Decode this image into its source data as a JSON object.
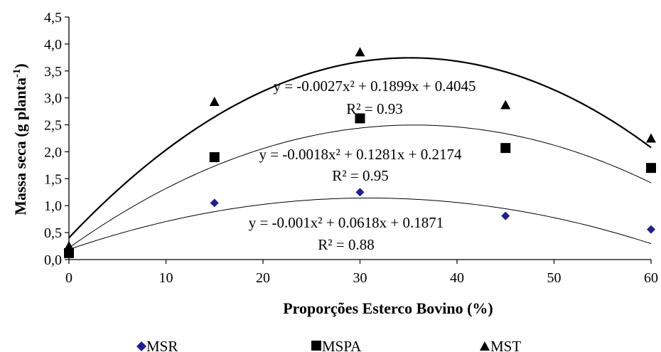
{
  "chart_data": {
    "type": "scatter",
    "xlabel": "Proporções Esterco Bovino (%)",
    "ylabel": "Massa seca (g planta",
    "ylabel_sup": "-1",
    "ylabel_close": ")",
    "xlim": [
      0,
      60
    ],
    "ylim": [
      0,
      4.5
    ],
    "xticks": [
      "0",
      "10",
      "20",
      "30",
      "40",
      "50",
      "60"
    ],
    "yticks": [
      "0,0",
      "0,5",
      "1,0",
      "1,5",
      "2,0",
      "2,5",
      "3,0",
      "3,5",
      "4,0",
      "4,5"
    ],
    "grid": false,
    "legend_position": "bottom",
    "series": [
      {
        "name": "MSR",
        "marker": "diamond",
        "color": "#1f1f8f",
        "x": [
          0,
          15,
          30,
          45,
          60
        ],
        "y": [
          0.2,
          1.05,
          1.25,
          0.81,
          0.56
        ],
        "fit": {
          "a": -0.001,
          "b": 0.0618,
          "c": 0.1871,
          "stroke": 1
        },
        "equation": "y = -0.001x² + 0.0618x + 0.1871",
        "r2": "R² = 0.88"
      },
      {
        "name": "MSPA",
        "marker": "square",
        "color": "#000000",
        "x": [
          0,
          15,
          30,
          45,
          60
        ],
        "y": [
          0.12,
          1.9,
          2.62,
          2.07,
          1.7
        ],
        "fit": {
          "a": -0.0018,
          "b": 0.1281,
          "c": 0.2174,
          "stroke": 1
        },
        "equation": "y = -0.0018x² + 0.1281x + 0.2174",
        "r2": "R² = 0.95"
      },
      {
        "name": "MST",
        "marker": "triangle",
        "color": "#000000",
        "x": [
          0,
          15,
          30,
          45,
          60
        ],
        "y": [
          0.25,
          2.93,
          3.85,
          2.87,
          2.25
        ],
        "fit": {
          "a": -0.0027,
          "b": 0.1899,
          "c": 0.4045,
          "stroke": 2.2
        },
        "equation": "y = -0.0027x² + 0.1899x + 0.4045",
        "r2": "R² = 0.93"
      }
    ]
  }
}
